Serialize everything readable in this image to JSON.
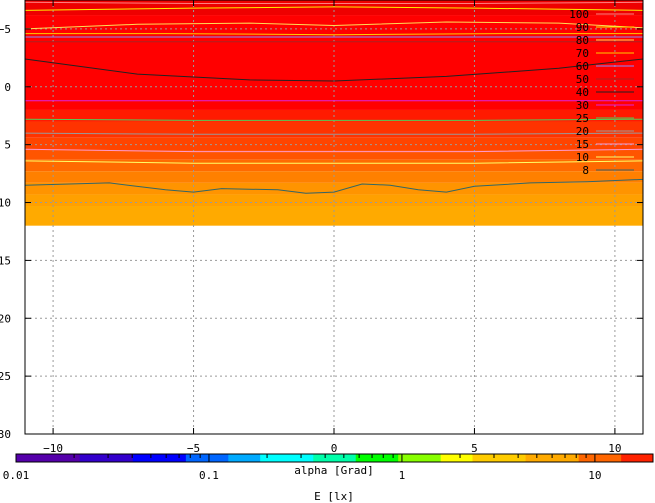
{
  "chart_data": {
    "type": "heatmap",
    "title": "",
    "xlabel": "alpha [Grad]",
    "ylabel": "",
    "xlim": [
      -11,
      11
    ],
    "ylim": [
      -7.5,
      30
    ],
    "y_inverted": true,
    "grid": true,
    "x_ticks": [
      -10,
      -5,
      0,
      5,
      10
    ],
    "y_ticks": [
      -5,
      0,
      5,
      10,
      15,
      20,
      25,
      30
    ],
    "data_extent_y": [
      -7.5,
      12
    ],
    "bands": [
      {
        "y0": -7.5,
        "y1": -6.2,
        "color": "#ee0000"
      },
      {
        "y0": -6.2,
        "y1": 2.0,
        "color": "#ff0000"
      },
      {
        "y0": 2.0,
        "y1": 3.0,
        "color": "#ff1a00"
      },
      {
        "y0": 3.0,
        "y1": 4.4,
        "color": "#ff3300"
      },
      {
        "y0": 4.4,
        "y1": 5.5,
        "color": "#ff4400"
      },
      {
        "y0": 5.5,
        "y1": 6.3,
        "color": "#ff5500"
      },
      {
        "y0": 6.3,
        "y1": 7.3,
        "color": "#ff6a00"
      },
      {
        "y0": 7.3,
        "y1": 8.3,
        "color": "#ff8000"
      },
      {
        "y0": 8.3,
        "y1": 9.3,
        "color": "#ff9400"
      },
      {
        "y0": 9.3,
        "y1": 10.3,
        "color": "#ffa000"
      },
      {
        "y0": 10.3,
        "y1": 12.0,
        "color": "#ffaa00"
      }
    ],
    "contours": [
      {
        "level": "100",
        "color": "#ff8080",
        "points": [
          [
            -11,
            -7.3
          ],
          [
            -5,
            -7.2
          ],
          [
            0,
            -7.2
          ],
          [
            5,
            -7.2
          ],
          [
            11,
            -7.3
          ]
        ]
      },
      {
        "level": "90",
        "color": "#ffee00",
        "points": [
          [
            -11,
            -6.6
          ],
          [
            -5,
            -6.8
          ],
          [
            0,
            -6.9
          ],
          [
            5,
            -6.8
          ],
          [
            11,
            -6.6
          ]
        ]
      },
      {
        "level": "80",
        "color": "#ffdd55",
        "points": [
          [
            -11,
            -5.0
          ],
          [
            -7,
            -5.4
          ],
          [
            -3,
            -5.5
          ],
          [
            0,
            -5.3
          ],
          [
            4,
            -5.6
          ],
          [
            8,
            -5.5
          ],
          [
            11,
            -5.1
          ]
        ]
      },
      {
        "level": "70",
        "color": "#ffcc00",
        "points": [
          [
            -11,
            -4.6
          ],
          [
            -6,
            -4.6
          ],
          [
            0,
            -4.5
          ],
          [
            6,
            -4.6
          ],
          [
            11,
            -4.6
          ]
        ]
      },
      {
        "level": "60",
        "color": "#8888ff",
        "points": [
          [
            -11,
            -4.3
          ],
          [
            -6,
            -4.3
          ],
          [
            0,
            -4.3
          ],
          [
            6,
            -4.3
          ],
          [
            11,
            -4.3
          ]
        ]
      },
      {
        "level": "50",
        "color": "#aa2222",
        "points": [
          [
            -11,
            -3.9
          ],
          [
            -5,
            -3.9
          ],
          [
            0,
            -3.9
          ],
          [
            5,
            -3.9
          ],
          [
            11,
            -3.9
          ]
        ]
      },
      {
        "level": "40",
        "color": "#222222",
        "points": [
          [
            -11,
            -2.4
          ],
          [
            -7,
            -1.1
          ],
          [
            -3,
            -0.6
          ],
          [
            0,
            -0.5
          ],
          [
            4,
            -0.9
          ],
          [
            8,
            -1.6
          ],
          [
            11,
            -2.4
          ]
        ]
      },
      {
        "level": "30",
        "color": "#dd22dd",
        "points": [
          [
            -11,
            1.2
          ],
          [
            -5,
            1.2
          ],
          [
            0,
            1.2
          ],
          [
            5,
            1.2
          ],
          [
            11,
            1.2
          ]
        ]
      },
      {
        "level": "25",
        "color": "#55cc55",
        "points": [
          [
            -11,
            2.8
          ],
          [
            -5,
            2.9
          ],
          [
            0,
            2.9
          ],
          [
            5,
            2.9
          ],
          [
            11,
            2.8
          ]
        ]
      },
      {
        "level": "20",
        "color": "#999999",
        "points": [
          [
            -11,
            4.0
          ],
          [
            -5,
            4.1
          ],
          [
            0,
            4.1
          ],
          [
            5,
            4.1
          ],
          [
            11,
            4.0
          ]
        ]
      },
      {
        "level": "15",
        "color": "#ff99cc",
        "points": [
          [
            -11,
            5.4
          ],
          [
            -5,
            5.6
          ],
          [
            0,
            5.6
          ],
          [
            5,
            5.6
          ],
          [
            11,
            5.4
          ]
        ]
      },
      {
        "level": "10",
        "color": "#ffff66",
        "points": [
          [
            -11,
            6.4
          ],
          [
            -5,
            6.6
          ],
          [
            0,
            6.6
          ],
          [
            5,
            6.6
          ],
          [
            11,
            6.4
          ]
        ]
      },
      {
        "level": "8",
        "color": "#336666",
        "points": [
          [
            -11,
            8.5
          ],
          [
            -8,
            8.3
          ],
          [
            -6,
            8.9
          ],
          [
            -5,
            9.1
          ],
          [
            -4,
            8.8
          ],
          [
            -2,
            8.9
          ],
          [
            -1,
            9.2
          ],
          [
            0,
            9.1
          ],
          [
            1,
            8.4
          ],
          [
            2,
            8.5
          ],
          [
            3,
            8.9
          ],
          [
            4,
            9.1
          ],
          [
            5,
            8.6
          ],
          [
            7,
            8.3
          ],
          [
            9,
            8.2
          ],
          [
            11,
            8.0
          ]
        ]
      }
    ],
    "colorbar": {
      "label": "E [lx]",
      "scale": "log",
      "range": [
        0.01,
        20
      ],
      "tick_labels": [
        "0.01",
        "0.1",
        "1",
        "10"
      ],
      "tick_values": [
        0.01,
        0.1,
        1,
        10
      ]
    }
  }
}
